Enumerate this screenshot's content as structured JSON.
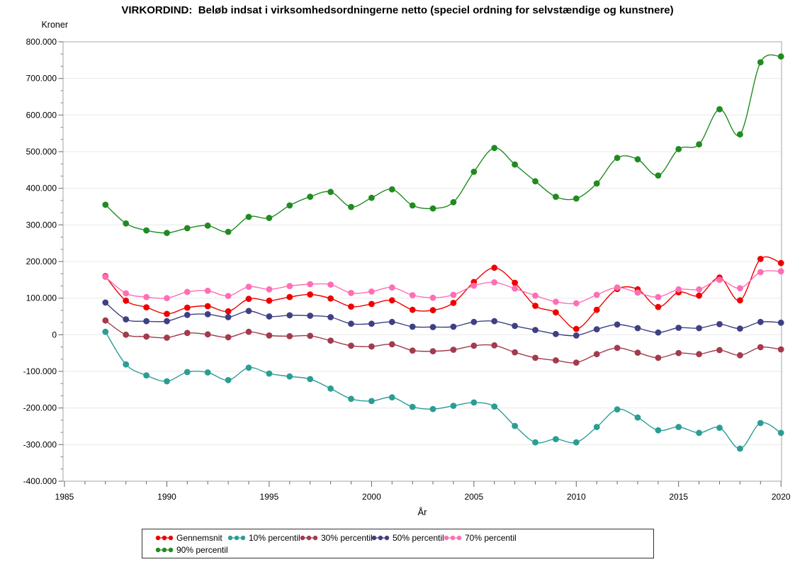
{
  "title": "VIRKORDIND:  Beløb indsat i virksomhedsordningerne netto (speciel ordning for selvstændige og kunstnere)",
  "chart_data": {
    "type": "line",
    "title": "VIRKORDIND:  Beløb indsat i virksomhedsordningerne netto (speciel ordning for selvstændige og kunstnere)",
    "xlabel": "År",
    "ylabel": "Kroner",
    "xlim": [
      1985,
      2020
    ],
    "ylim": [
      -400000,
      800000
    ],
    "grid": "horizontal",
    "legend_position": "bottom",
    "marker": "circle",
    "smooth": true,
    "xtick_values": [
      1985,
      1990,
      1995,
      2000,
      2005,
      2010,
      2015,
      2020
    ],
    "xtick_labels": [
      "1985",
      "1990",
      "1995",
      "2000",
      "2005",
      "2010",
      "2015",
      "2020"
    ],
    "ytick_values": [
      800000,
      700000,
      600000,
      500000,
      400000,
      300000,
      200000,
      100000,
      0,
      -100000,
      -200000,
      -300000,
      -400000
    ],
    "ytick_labels": [
      "800.000",
      "700.000",
      "600.000",
      "500.000",
      "400.000",
      "300.000",
      "200.000",
      "100.000",
      "0",
      "-100.000",
      "-200.000",
      "-300.000",
      "-400.000"
    ],
    "x": [
      1987,
      1988,
      1989,
      1990,
      1991,
      1992,
      1993,
      1994,
      1995,
      1996,
      1997,
      1998,
      1999,
      2000,
      2001,
      2002,
      2003,
      2004,
      2005,
      2006,
      2007,
      2008,
      2009,
      2010,
      2011,
      2012,
      2013,
      2014,
      2015,
      2016,
      2017,
      2018,
      2019,
      2020
    ],
    "series": [
      {
        "name": "Gennemsnit",
        "color": "#ef0000",
        "values": [
          160000,
          93000,
          75000,
          57000,
          74000,
          78000,
          64000,
          98000,
          93000,
          103000,
          110000,
          99000,
          77000,
          84000,
          94000,
          68000,
          67000,
          87000,
          144000,
          183000,
          142000,
          79000,
          61000,
          16000,
          68000,
          125000,
          124000,
          76000,
          116000,
          107000,
          156000,
          94000,
          207000,
          196000
        ]
      },
      {
        "name": "10% percentil",
        "color": "#2a9d95",
        "values": [
          8000,
          -81000,
          -111000,
          -127000,
          -102000,
          -103000,
          -124000,
          -90000,
          -106000,
          -114000,
          -121000,
          -147000,
          -175000,
          -181000,
          -171000,
          -197000,
          -203000,
          -194000,
          -185000,
          -196000,
          -249000,
          -294000,
          -285000,
          -294000,
          -252000,
          -204000,
          -226000,
          -261000,
          -252000,
          -268000,
          -254000,
          -311000,
          -241000,
          -268000
        ]
      },
      {
        "name": "30% percentil",
        "color": "#a23b4d",
        "values": [
          39000,
          0,
          -5000,
          -8000,
          5000,
          1000,
          -7000,
          8000,
          -2000,
          -4000,
          -3000,
          -16000,
          -30000,
          -32000,
          -26000,
          -43000,
          -45000,
          -41000,
          -30000,
          -29000,
          -48000,
          -63000,
          -70000,
          -76000,
          -53000,
          -36000,
          -49000,
          -63000,
          -50000,
          -53000,
          -42000,
          -56000,
          -34000,
          -40000
        ]
      },
      {
        "name": "50% percentil",
        "color": "#3f4083",
        "values": [
          88000,
          42000,
          37000,
          37000,
          54000,
          56000,
          48000,
          65000,
          50000,
          53000,
          52000,
          48000,
          30000,
          30000,
          35000,
          22000,
          21000,
          22000,
          35000,
          37000,
          24000,
          13000,
          2000,
          -2000,
          15000,
          28000,
          18000,
          6000,
          19000,
          18000,
          29000,
          17000,
          35000,
          33000
        ]
      },
      {
        "name": "70% percentil",
        "color": "#ff6eb4",
        "values": [
          158000,
          113000,
          103000,
          100000,
          117000,
          120000,
          106000,
          131000,
          124000,
          133000,
          138000,
          137000,
          114000,
          118000,
          129000,
          108000,
          101000,
          109000,
          134000,
          143000,
          126000,
          107000,
          90000,
          86000,
          109000,
          129000,
          115000,
          103000,
          124000,
          124000,
          150000,
          127000,
          171000,
          173000
        ]
      },
      {
        "name": "90% percentil",
        "color": "#208b20",
        "values": [
          355000,
          304000,
          285000,
          278000,
          291000,
          298000,
          281000,
          322000,
          319000,
          353000,
          377000,
          390000,
          349000,
          374000,
          397000,
          353000,
          345000,
          362000,
          445000,
          510000,
          465000,
          419000,
          377000,
          372000,
          413000,
          483000,
          479000,
          435000,
          507000,
          520000,
          616000,
          547000,
          744000,
          760000
        ]
      }
    ]
  }
}
